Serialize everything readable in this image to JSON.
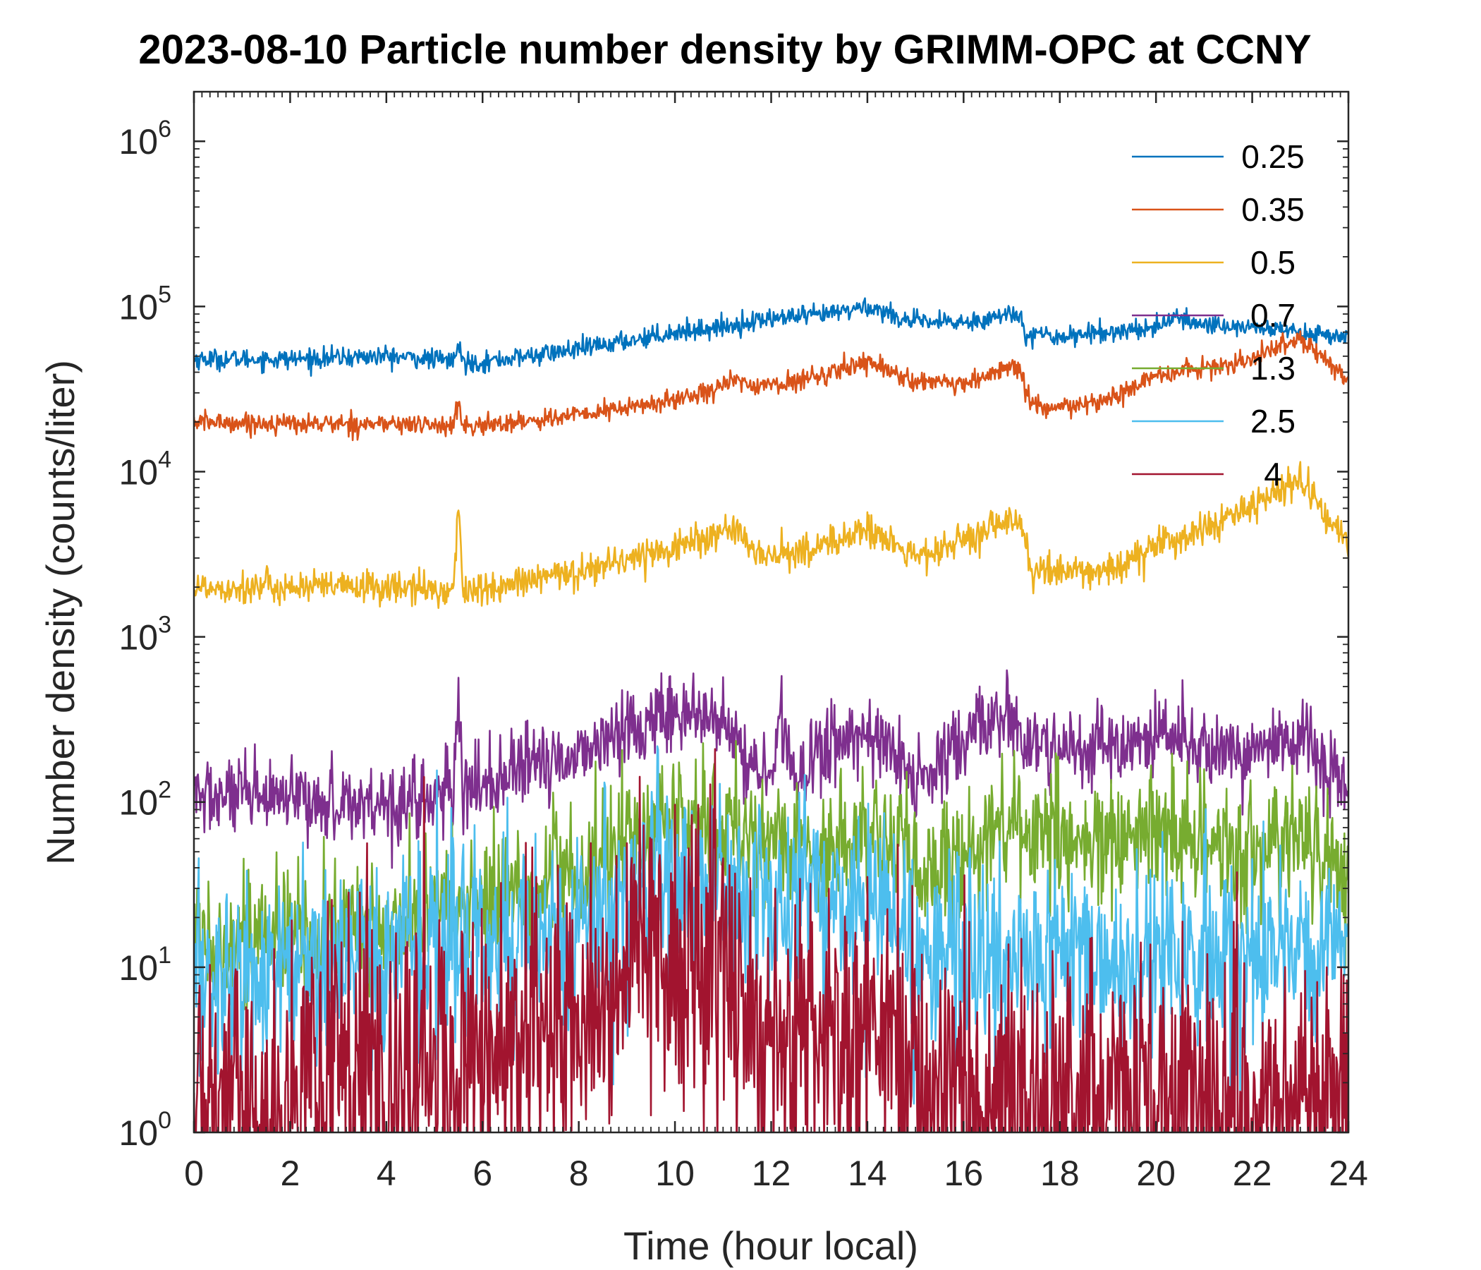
{
  "chart_data": {
    "type": "line",
    "title": "2023-08-10 Particle number density by GRIMM-OPC at CCNY",
    "xlabel": "Time (hour local)",
    "ylabel": "Number density (counts/liter)",
    "xlim": [
      0,
      24
    ],
    "ylim_log10": [
      0,
      6.3
    ],
    "yscale": "log",
    "x_ticks": [
      0,
      2,
      4,
      6,
      8,
      10,
      12,
      14,
      16,
      18,
      20,
      22,
      24
    ],
    "x_tick_labels": [
      "0",
      "2",
      "4",
      "6",
      "8",
      "10",
      "12",
      "14",
      "16",
      "18",
      "20",
      "22",
      "24"
    ],
    "y_ticks_log10": [
      0,
      1,
      2,
      3,
      4,
      5,
      6
    ],
    "y_tick_base": "10",
    "y_tick_exponents": [
      "0",
      "1",
      "2",
      "3",
      "4",
      "5",
      "6"
    ],
    "legend_location": "top-right",
    "series": [
      {
        "name": "0.25",
        "color": "#0072BD",
        "noise_log10": 0.03,
        "x": [
          0,
          2,
          4,
          5.4,
          5.5,
          5.6,
          6,
          8,
          9,
          10,
          11,
          12,
          13,
          14,
          15,
          16,
          17,
          17.2,
          17.3,
          18,
          19,
          20,
          20.3,
          21,
          22,
          23,
          24
        ],
        "y": [
          48000,
          48000,
          50000,
          47000,
          58000,
          46000,
          46000,
          55000,
          62000,
          70000,
          75000,
          85000,
          88000,
          100000,
          80000,
          80000,
          90000,
          88000,
          68000,
          66000,
          70000,
          75000,
          85000,
          78000,
          75000,
          70000,
          65000
        ]
      },
      {
        "name": "0.35",
        "color": "#D95319",
        "noise_log10": 0.03,
        "x": [
          0,
          2,
          4,
          5.4,
          5.5,
          5.6,
          6,
          8,
          10,
          11.2,
          12,
          13,
          14,
          15,
          16,
          17,
          17.2,
          17.4,
          18,
          19,
          20,
          21,
          22,
          23,
          24
        ],
        "y": [
          20000,
          19500,
          19500,
          19000,
          26000,
          18500,
          19000,
          22000,
          27000,
          35000,
          33000,
          38000,
          47000,
          35000,
          33000,
          44000,
          40000,
          25000,
          24000,
          27000,
          38000,
          42000,
          48000,
          65000,
          35000
        ]
      },
      {
        "name": "0.5",
        "color": "#EDB120",
        "noise_log10": 0.05,
        "x": [
          0,
          2,
          4,
          5.4,
          5.5,
          5.6,
          6,
          8,
          10,
          11.2,
          11.8,
          13,
          14,
          15,
          16,
          17,
          17.2,
          17.4,
          18,
          19,
          20,
          21,
          22,
          23,
          24
        ],
        "y": [
          2000,
          2000,
          2000,
          1900,
          6500,
          1900,
          1900,
          2500,
          3500,
          4500,
          3000,
          3500,
          4500,
          3000,
          3800,
          5000,
          4800,
          2500,
          2500,
          2500,
          3500,
          4500,
          6000,
          9000,
          3600
        ]
      },
      {
        "name": "0.7",
        "color": "#7E2F8E",
        "noise_log10": 0.12,
        "x": [
          0,
          2,
          4,
          5.4,
          5.5,
          5.6,
          6,
          8,
          9.8,
          11,
          11.5,
          12,
          12.2,
          12.4,
          13,
          14,
          15,
          15.2,
          16,
          17,
          17.3,
          18,
          19,
          20,
          21,
          22,
          23,
          24
        ],
        "y": [
          110,
          100,
          100,
          110,
          420,
          110,
          130,
          200,
          350,
          300,
          180,
          130,
          380,
          140,
          200,
          280,
          140,
          130,
          230,
          380,
          200,
          210,
          200,
          250,
          210,
          200,
          240,
          120
        ]
      },
      {
        "name": "1.3",
        "color": "#77AC30",
        "noise_log10": 0.2,
        "x": [
          0,
          2,
          4,
          6,
          8,
          9.8,
          11,
          12,
          13,
          14,
          15,
          15.3,
          16,
          17,
          18,
          19,
          20,
          21,
          22,
          23,
          24
        ],
        "y": [
          15,
          15,
          18,
          25,
          35,
          80,
          70,
          55,
          50,
          70,
          40,
          30,
          55,
          70,
          60,
          55,
          60,
          55,
          50,
          60,
          35
        ]
      },
      {
        "name": "2.5",
        "color": "#4DBEEE",
        "noise_log10": 0.3,
        "x": [
          0,
          2,
          4,
          6,
          8,
          10,
          11,
          12,
          13,
          14,
          15,
          16,
          17,
          18,
          19,
          20,
          21,
          22,
          23,
          24
        ],
        "y": [
          8,
          10,
          11,
          15,
          18,
          35,
          35,
          25,
          25,
          25,
          16,
          10,
          11,
          12,
          10,
          10,
          10,
          11,
          12,
          14
        ]
      },
      {
        "name": "4",
        "color": "#A2142F",
        "noise_log10": 0.45,
        "x": [
          0,
          2,
          4,
          6,
          8,
          9.5,
          10.5,
          11.5,
          12,
          13,
          14,
          15,
          16,
          18,
          20,
          22,
          24
        ],
        "y": [
          1.5,
          1.8,
          2,
          3,
          5,
          14,
          12,
          6,
          4,
          4,
          4,
          2.5,
          1.5,
          1.5,
          1.5,
          1.5,
          1.5
        ]
      }
    ]
  }
}
